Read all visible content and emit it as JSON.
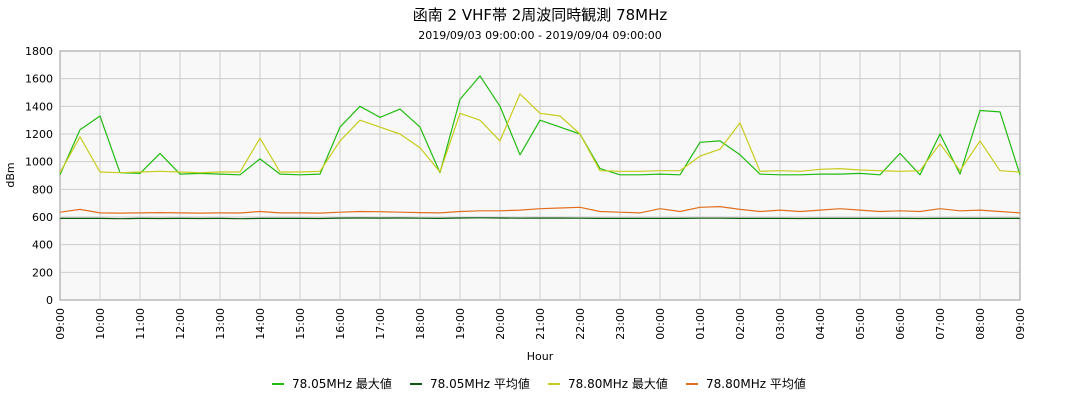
{
  "chart_data": {
    "type": "line",
    "title": "函南 2 VHF帯 2周波同時観測 78MHz",
    "subtitle": "2019/09/03 09:00:00 - 2019/09/04 09:00:00",
    "xlabel": "Hour",
    "ylabel": "dBm",
    "ylim": [
      0,
      1800
    ],
    "yticks": [
      0,
      200,
      400,
      600,
      800,
      1000,
      1200,
      1400,
      1600,
      1800
    ],
    "x_tick_labels": [
      "09:00",
      "10:00",
      "11:00",
      "12:00",
      "13:00",
      "14:00",
      "15:00",
      "16:00",
      "17:00",
      "18:00",
      "19:00",
      "20:00",
      "21:00",
      "22:00",
      "23:00",
      "00:00",
      "01:00",
      "02:00",
      "03:00",
      "04:00",
      "05:00",
      "06:00",
      "07:00",
      "08:00",
      "09:00"
    ],
    "grid": true,
    "legend_position": "bottom",
    "x": [
      "09:00",
      "09:30",
      "10:00",
      "10:30",
      "11:00",
      "11:30",
      "12:00",
      "12:30",
      "13:00",
      "13:30",
      "14:00",
      "14:30",
      "15:00",
      "15:30",
      "16:00",
      "16:30",
      "17:00",
      "17:30",
      "18:00",
      "18:30",
      "19:00",
      "19:30",
      "20:00",
      "20:30",
      "21:00",
      "21:30",
      "22:00",
      "22:30",
      "23:00",
      "23:30",
      "00:00",
      "00:30",
      "01:00",
      "01:30",
      "02:00",
      "02:30",
      "03:00",
      "03:30",
      "04:00",
      "04:30",
      "05:00",
      "05:30",
      "06:00",
      "06:30",
      "07:00",
      "07:30",
      "08:00",
      "08:30",
      "09:00"
    ],
    "series": [
      {
        "name": "78.05MHz 最大値",
        "color": "#22bb11",
        "values": [
          905,
          1230,
          1330,
          920,
          915,
          1060,
          910,
          915,
          910,
          905,
          1020,
          910,
          905,
          910,
          1250,
          1400,
          1320,
          1380,
          1250,
          920,
          1450,
          1620,
          1400,
          1050,
          1300,
          1250,
          1200,
          950,
          905,
          905,
          910,
          905,
          1140,
          1150,
          1050,
          910,
          905,
          905,
          910,
          910,
          915,
          905,
          1060,
          905,
          1200,
          910,
          1370,
          1360,
          905
        ]
      },
      {
        "name": "78.05MHz 平均値",
        "color": "#105a10",
        "values": [
          590,
          590,
          590,
          588,
          590,
          589,
          590,
          589,
          590,
          588,
          590,
          590,
          590,
          589,
          592,
          593,
          592,
          593,
          591,
          590,
          593,
          594,
          593,
          591,
          592,
          592,
          591,
          590,
          590,
          590,
          590,
          590,
          591,
          591,
          590,
          590,
          590,
          589,
          590,
          590,
          590,
          590,
          590,
          589,
          590,
          590,
          590,
          590,
          590
        ]
      },
      {
        "name": "78.80MHz 最大値",
        "color": "#c8cc1c",
        "values": [
          920,
          1180,
          925,
          920,
          925,
          930,
          925,
          920,
          925,
          925,
          1170,
          925,
          925,
          930,
          1150,
          1300,
          1250,
          1200,
          1100,
          925,
          1350,
          1300,
          1150,
          1490,
          1350,
          1330,
          1200,
          935,
          930,
          930,
          935,
          935,
          1040,
          1090,
          1280,
          930,
          935,
          930,
          945,
          950,
          940,
          935,
          930,
          935,
          1130,
          935,
          1150,
          935,
          925
        ]
      },
      {
        "name": "78.80MHz 平均値",
        "color": "#e07020",
        "values": [
          635,
          655,
          630,
          628,
          630,
          632,
          630,
          628,
          630,
          629,
          640,
          630,
          630,
          628,
          635,
          640,
          638,
          635,
          632,
          630,
          640,
          645,
          645,
          650,
          660,
          665,
          670,
          640,
          635,
          630,
          660,
          640,
          670,
          675,
          655,
          640,
          650,
          640,
          650,
          660,
          650,
          640,
          645,
          640,
          660,
          645,
          650,
          640,
          630
        ]
      }
    ]
  }
}
